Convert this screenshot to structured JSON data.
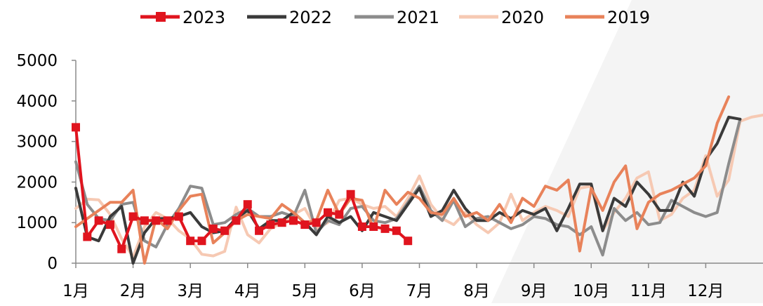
{
  "chart_data": {
    "type": "line",
    "title": "",
    "xlabel": "",
    "ylabel": "",
    "ylim": [
      0,
      5000
    ],
    "y_ticks": [
      0,
      1000,
      2000,
      3000,
      4000,
      5000
    ],
    "x_range": [
      1,
      13
    ],
    "x_ticks": [
      1,
      2,
      3,
      4,
      5,
      6,
      7,
      8,
      9,
      10,
      11,
      12
    ],
    "x_tick_labels": [
      "1月",
      "2月",
      "3月",
      "4月",
      "5月",
      "6月",
      "7月",
      "8月",
      "9月",
      "10月",
      "11月",
      "12月"
    ],
    "grid": false,
    "legend_position": "top",
    "series": [
      {
        "name": "2020",
        "color": "#f6c9b3",
        "marker": "none",
        "x": [
          1.0,
          1.2,
          1.4,
          1.6,
          1.8,
          2.0,
          2.2,
          2.4,
          2.6,
          2.8,
          3.0,
          3.2,
          3.4,
          3.6,
          3.8,
          4.0,
          4.2,
          4.4,
          4.6,
          4.8,
          5.0,
          5.2,
          5.4,
          5.6,
          5.8,
          6.0,
          6.2,
          6.4,
          6.6,
          6.8,
          7.0,
          7.2,
          7.4,
          7.6,
          7.8,
          8.0,
          8.2,
          8.4,
          8.6,
          8.8,
          9.0,
          9.2,
          9.4,
          9.6,
          9.8,
          10.0,
          10.2,
          10.4,
          10.6,
          10.8,
          11.0,
          11.2,
          11.4,
          11.6,
          11.8,
          12.0,
          12.2,
          12.4,
          12.6,
          12.8,
          13.0
        ],
        "values": [
          1350,
          1580,
          1560,
          1200,
          600,
          150,
          900,
          1250,
          1100,
          800,
          600,
          220,
          180,
          290,
          1380,
          700,
          500,
          850,
          1000,
          1200,
          1350,
          850,
          1000,
          1550,
          1600,
          1450,
          1350,
          1400,
          1150,
          1600,
          2150,
          1450,
          1100,
          950,
          1250,
          950,
          750,
          1000,
          1700,
          1050,
          1250,
          1400,
          1300,
          1150,
          1850,
          1900,
          800,
          1250,
          1600,
          2100,
          2250,
          1050,
          1200,
          1600,
          1800,
          2650,
          1650,
          2050,
          3500,
          3600,
          3650
        ]
      },
      {
        "name": "2021",
        "color": "#8c8c8c",
        "marker": "none",
        "x": [
          1.0,
          1.2,
          1.4,
          1.6,
          1.8,
          2.0,
          2.2,
          2.4,
          2.6,
          2.8,
          3.0,
          3.2,
          3.4,
          3.6,
          3.8,
          4.0,
          4.2,
          4.4,
          4.6,
          4.8,
          5.0,
          5.2,
          5.4,
          5.6,
          5.8,
          6.0,
          6.2,
          6.4,
          6.6,
          6.8,
          7.0,
          7.2,
          7.4,
          7.6,
          7.8,
          8.0,
          8.2,
          8.4,
          8.6,
          8.8,
          9.0,
          9.2,
          9.4,
          9.6,
          9.8,
          10.0,
          10.2,
          10.4,
          10.6,
          10.8,
          11.0,
          11.2,
          11.4,
          11.6,
          11.8,
          12.0,
          12.2,
          12.4,
          12.6,
          12.8,
          13.0
        ],
        "values": [
          2500,
          1450,
          1100,
          1050,
          1450,
          1500,
          550,
          400,
          950,
          1350,
          1900,
          1850,
          950,
          1000,
          1200,
          1350,
          1150,
          1150,
          1250,
          1150,
          1800,
          750,
          1050,
          950,
          1350,
          1400,
          1050,
          1000,
          1100,
          1500,
          1900,
          1300,
          1050,
          1550,
          900,
          1100,
          1150,
          1000,
          850,
          950,
          1150,
          1100,
          950,
          900,
          700,
          900,
          200,
          1350,
          1050,
          1250,
          950,
          1000,
          1550,
          1400,
          1250,
          1150,
          1250,
          2450,
          3550,
          null,
          null
        ]
      },
      {
        "name": "2022",
        "color": "#3a3a3a",
        "marker": "none",
        "x": [
          1.0,
          1.2,
          1.4,
          1.6,
          1.8,
          2.0,
          2.2,
          2.4,
          2.6,
          2.8,
          3.0,
          3.2,
          3.4,
          3.6,
          3.8,
          4.0,
          4.2,
          4.4,
          4.6,
          4.8,
          5.0,
          5.2,
          5.4,
          5.6,
          5.8,
          6.0,
          6.2,
          6.4,
          6.6,
          6.8,
          7.0,
          7.2,
          7.4,
          7.6,
          7.8,
          8.0,
          8.2,
          8.4,
          8.6,
          8.8,
          9.0,
          9.2,
          9.4,
          9.6,
          9.8,
          10.0,
          10.2,
          10.4,
          10.6,
          10.8,
          11.0,
          11.2,
          11.4,
          11.6,
          11.8,
          12.0,
          12.2,
          12.4,
          12.6,
          12.8,
          13.0
        ],
        "values": [
          1850,
          650,
          550,
          1150,
          1400,
          0,
          750,
          1100,
          1100,
          1150,
          1250,
          900,
          750,
          800,
          1100,
          1300,
          850,
          1050,
          1050,
          1250,
          1000,
          700,
          1150,
          1000,
          1150,
          800,
          1250,
          1150,
          1050,
          1450,
          1850,
          1150,
          1300,
          1800,
          1350,
          1050,
          1050,
          1250,
          1100,
          1300,
          1200,
          1350,
          800,
          1350,
          1950,
          1950,
          800,
          1600,
          1400,
          2000,
          1700,
          1300,
          1300,
          2000,
          1650,
          2550,
          2950,
          3600,
          3550,
          null,
          null
        ]
      },
      {
        "name": "2019",
        "color": "#e8825a",
        "marker": "none",
        "x": [
          1.0,
          1.2,
          1.4,
          1.6,
          1.8,
          2.0,
          2.2,
          2.4,
          2.6,
          2.8,
          3.0,
          3.2,
          3.4,
          3.6,
          3.8,
          4.0,
          4.2,
          4.4,
          4.6,
          4.8,
          5.0,
          5.2,
          5.4,
          5.6,
          5.8,
          6.0,
          6.2,
          6.4,
          6.6,
          6.8,
          7.0,
          7.2,
          7.4,
          7.6,
          7.8,
          8.0,
          8.2,
          8.4,
          8.6,
          8.8,
          9.0,
          9.2,
          9.4,
          9.6,
          9.8,
          10.0,
          10.2,
          10.4,
          10.6,
          10.8,
          11.0,
          11.2,
          11.4,
          11.6,
          11.8,
          12.0,
          12.2,
          12.4,
          12.6,
          12.8,
          13.0
        ],
        "values": [
          900,
          1100,
          1300,
          1500,
          1500,
          1800,
          0,
          1100,
          850,
          1300,
          1650,
          1700,
          500,
          750,
          1050,
          1200,
          1150,
          1100,
          1450,
          1250,
          1000,
          1050,
          1800,
          1200,
          1600,
          1550,
          850,
          1800,
          1450,
          1750,
          1600,
          1250,
          1200,
          1600,
          1150,
          1250,
          1050,
          1450,
          1000,
          1600,
          1400,
          1900,
          1800,
          2050,
          300,
          1850,
          1300,
          2000,
          2400,
          850,
          1500,
          1700,
          1800,
          1950,
          2100,
          2400,
          3450,
          4100,
          null,
          null,
          null
        ]
      },
      {
        "name": "2023",
        "color": "#e0141e",
        "marker": "square",
        "x": [
          1.0,
          1.2,
          1.4,
          1.6,
          1.8,
          2.0,
          2.2,
          2.4,
          2.6,
          2.8,
          3.0,
          3.2,
          3.4,
          3.6,
          3.8,
          4.0,
          4.2,
          4.4,
          4.6,
          4.8,
          5.0,
          5.2,
          5.4,
          5.6,
          5.8,
          6.0,
          6.2,
          6.4,
          6.6,
          6.8
        ],
        "values": [
          3350,
          650,
          1050,
          950,
          350,
          1150,
          1050,
          1050,
          1050,
          1150,
          550,
          550,
          850,
          800,
          1050,
          1450,
          800,
          950,
          1000,
          1050,
          950,
          1000,
          1250,
          1200,
          1700,
          900,
          900,
          850,
          800,
          550
        ]
      }
    ]
  }
}
